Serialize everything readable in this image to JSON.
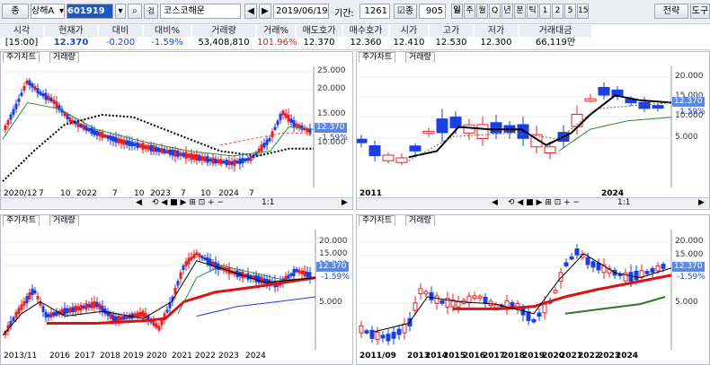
{
  "toolbar": {
    "mode_label": "종",
    "market_label": "상해A",
    "code_value": "601919",
    "search_label": "검",
    "name_value": "코스코해운",
    "date_value": "2019/06/19",
    "period_label": "기간:",
    "period_value": "1261",
    "count_label": "종",
    "count_value": "905",
    "interval_buttons": [
      "일",
      "주",
      "월",
      "Q",
      "년",
      "분",
      "틱",
      "1",
      "2",
      "5",
      "15"
    ],
    "strategy_label": "전략",
    "tool_label": "도구"
  },
  "quote": {
    "headers": [
      "시각",
      "현재가",
      "대비",
      "대비%",
      "거래량",
      "거래%",
      "매도호가",
      "매수호가",
      "시가",
      "고가",
      "저가",
      "거래대금"
    ],
    "values": [
      "[15:00]",
      "12.370",
      "-0.200",
      "-1.59%",
      "53,408,810",
      "101.96%",
      "12.370",
      "12.360",
      "12.410",
      "12.530",
      "12.300",
      "66,119만"
    ]
  },
  "panels": [
    {
      "tabs": [
        "주가차트",
        "거래량"
      ],
      "y_ticks": [
        "25.000",
        "20.000",
        "15.000",
        "10.000"
      ],
      "x_ticks": [
        "2020/12",
        "7",
        "10",
        "2022",
        "7",
        "10",
        "2023",
        "7",
        "10",
        "2024",
        "7"
      ],
      "current": "12.370",
      "change": "-1.59%"
    },
    {
      "tabs": [
        "주가차트",
        "거래량"
      ],
      "y_ticks": [
        "20.000",
        "15.000",
        "10.000",
        "5.000"
      ],
      "x_ticks": [
        "2011",
        "2024"
      ],
      "current": "12.370",
      "change": "-1.59%"
    },
    {
      "tabs": [
        "주가차트",
        "거래량"
      ],
      "y_ticks": [
        "20.000",
        "15.000",
        "10.000",
        "5.000"
      ],
      "x_ticks": [
        "2013/11",
        "2016",
        "2017",
        "2018",
        "2019",
        "2020",
        "2021",
        "2022",
        "2023",
        "2024"
      ],
      "current": "12.370",
      "change": "-1.59%"
    },
    {
      "tabs": [
        "주가차트",
        "거래량"
      ],
      "y_ticks": [
        "20.000",
        "15.000",
        "10.000",
        "5.000"
      ],
      "x_ticks": [
        "2011/09",
        "2013",
        "2014",
        "2015",
        "2016",
        "2017",
        "2018",
        "2019",
        "2020",
        "2021",
        "2022",
        "2023",
        "2024"
      ],
      "current": "12.370",
      "change": "-1.59%"
    }
  ],
  "scroller": {
    "zoom_label": "1:1"
  },
  "colors": {
    "up": "#e8202a",
    "down": "#1a3fe0",
    "accent": "#1c58c8"
  }
}
